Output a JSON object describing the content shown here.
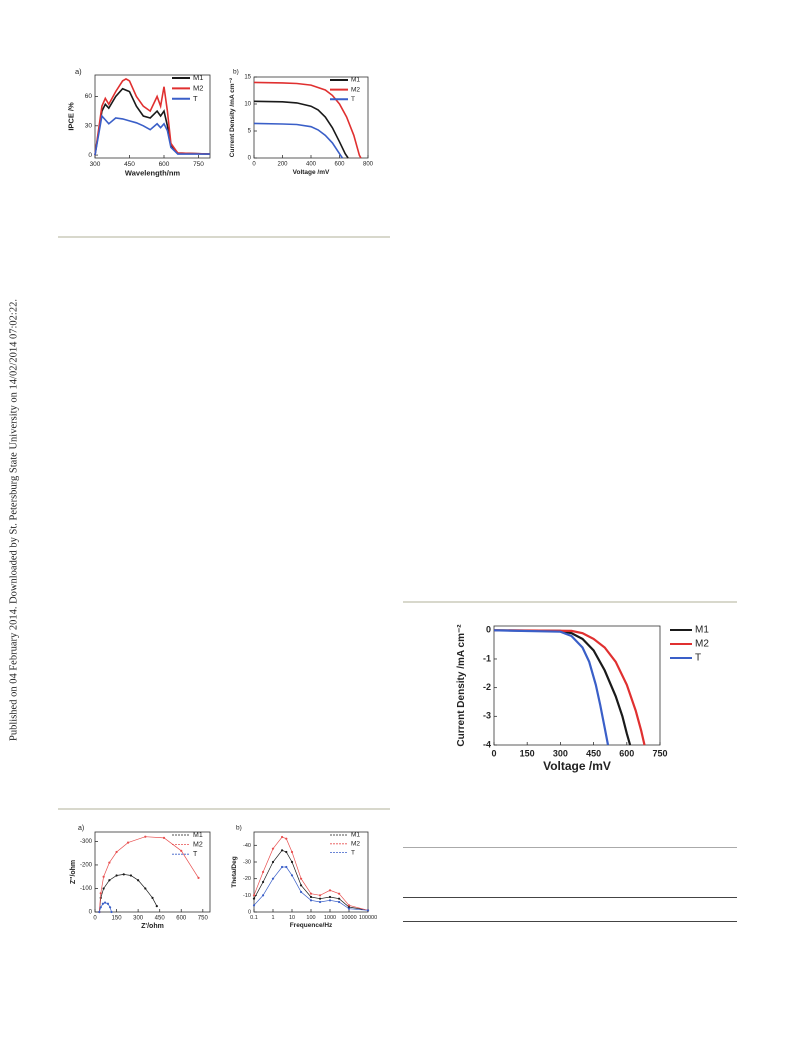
{
  "side_note": "Published on 04 February 2014. Downloaded by St. Petersburg State University on 14/02/2014 07:02:22.",
  "chart_data": [
    {
      "type": "line",
      "panel_label": "a)",
      "y_label": "IPCE /%",
      "x_label": "Wavelength/nm",
      "xlim": [
        300,
        800
      ],
      "ylim": [
        -3,
        82
      ],
      "xticks": [
        300,
        450,
        600,
        750
      ],
      "yticks": [
        0,
        30,
        60
      ],
      "legend": "upper right",
      "markers": false,
      "series": [
        {
          "name": "M1",
          "color": "#1a1a1a",
          "x": [
            300,
            330,
            345,
            360,
            390,
            420,
            450,
            480,
            510,
            540,
            570,
            585,
            600,
            615,
            630,
            660,
            800
          ],
          "values": [
            0,
            45,
            52,
            48,
            60,
            68,
            65,
            50,
            40,
            38,
            45,
            40,
            45,
            30,
            10,
            2,
            1
          ]
        },
        {
          "name": "M2",
          "color": "#e03030",
          "x": [
            300,
            330,
            345,
            360,
            390,
            420,
            435,
            450,
            480,
            510,
            540,
            570,
            585,
            600,
            615,
            630,
            660,
            800
          ],
          "values": [
            0,
            50,
            58,
            52,
            65,
            76,
            78,
            76,
            60,
            50,
            45,
            60,
            50,
            70,
            45,
            12,
            2,
            1
          ]
        },
        {
          "name": "T",
          "color": "#3a5fc8",
          "x": [
            300,
            330,
            360,
            390,
            420,
            450,
            480,
            510,
            540,
            570,
            585,
            600,
            615,
            630,
            660,
            800
          ],
          "values": [
            0,
            40,
            32,
            38,
            37,
            35,
            33,
            30,
            26,
            32,
            28,
            32,
            25,
            8,
            1,
            1
          ]
        }
      ]
    },
    {
      "type": "line",
      "panel_label": "b)",
      "y_label": "Current Density /mA cm⁻²",
      "x_label": "Voltage /mV",
      "xlim": [
        0,
        800
      ],
      "ylim": [
        0,
        15
      ],
      "xticks": [
        0,
        200,
        400,
        600,
        800
      ],
      "yticks": [
        0,
        5,
        10,
        15
      ],
      "legend": "upper right",
      "markers": false,
      "series": [
        {
          "name": "M1",
          "color": "#1a1a1a",
          "x": [
            0,
            200,
            300,
            400,
            450,
            500,
            550,
            600,
            640,
            660
          ],
          "values": [
            10.5,
            10.4,
            10.2,
            9.6,
            8.9,
            7.6,
            5.6,
            3.0,
            0.8,
            0
          ]
        },
        {
          "name": "M2",
          "color": "#e03030",
          "x": [
            0,
            200,
            300,
            400,
            500,
            550,
            600,
            650,
            700,
            740,
            750
          ],
          "values": [
            14,
            13.9,
            13.8,
            13.5,
            12.6,
            11.6,
            10.0,
            7.6,
            4.2,
            0.5,
            0
          ]
        },
        {
          "name": "T",
          "color": "#3a5fc8",
          "x": [
            0,
            200,
            300,
            400,
            450,
            500,
            550,
            600,
            620
          ],
          "values": [
            6.4,
            6.3,
            6.2,
            5.8,
            5.2,
            4.2,
            2.8,
            0.8,
            0
          ]
        }
      ]
    },
    {
      "type": "line",
      "y_label": "Current Density /mA cm⁻²",
      "x_label": "Voltage /mV",
      "xlim": [
        0,
        750
      ],
      "ylim": [
        -4,
        0.15
      ],
      "xticks": [
        0,
        150,
        300,
        450,
        600,
        750
      ],
      "yticks": [
        0,
        -1,
        -2,
        -3,
        -4
      ],
      "legend": "right",
      "markers": false,
      "series": [
        {
          "name": "M1",
          "color": "#1a1a1a",
          "x": [
            0,
            300,
            350,
            400,
            450,
            500,
            550,
            580,
            600,
            615
          ],
          "values": [
            0,
            -0.02,
            -0.1,
            -0.3,
            -0.7,
            -1.4,
            -2.3,
            -3.0,
            -3.6,
            -4
          ]
        },
        {
          "name": "M2",
          "color": "#e03030",
          "x": [
            0,
            350,
            400,
            450,
            500,
            550,
            600,
            640,
            665,
            680
          ],
          "values": [
            0,
            -0.02,
            -0.1,
            -0.3,
            -0.6,
            -1.1,
            -1.9,
            -2.8,
            -3.5,
            -4
          ]
        },
        {
          "name": "T",
          "color": "#3a5fc8",
          "x": [
            0,
            300,
            350,
            400,
            430,
            460,
            480,
            500,
            515
          ],
          "values": [
            0,
            -0.05,
            -0.2,
            -0.6,
            -1.1,
            -1.9,
            -2.6,
            -3.4,
            -4
          ]
        }
      ]
    },
    {
      "type": "line",
      "panel_label": "a)",
      "y_label": "Z''/ohm",
      "x_label": "Z'/ohm",
      "xlim": [
        0,
        800
      ],
      "ylim": [
        0,
        -340
      ],
      "xticks": [
        0,
        150,
        300,
        450,
        600,
        750
      ],
      "yticks": [
        0,
        -100,
        -200,
        -300
      ],
      "legend": "upper right",
      "markers": true,
      "series": [
        {
          "name": "M1",
          "color": "#1a1a1a",
          "x": [
            30,
            40,
            60,
            100,
            150,
            200,
            250,
            300,
            350,
            400,
            430
          ],
          "values": [
            0,
            -60,
            -100,
            -135,
            -155,
            -160,
            -155,
            -135,
            -100,
            -60,
            -25
          ]
        },
        {
          "name": "M2",
          "color": "#e85050",
          "x": [
            30,
            40,
            60,
            100,
            150,
            230,
            350,
            480,
            600,
            720
          ],
          "values": [
            0,
            -80,
            -150,
            -210,
            -255,
            -295,
            -320,
            -315,
            -260,
            -145
          ]
        },
        {
          "name": "T",
          "color": "#3a5fc8",
          "x": [
            30,
            40,
            55,
            70,
            90,
            105,
            115
          ],
          "values": [
            0,
            -20,
            -35,
            -40,
            -35,
            -20,
            0
          ]
        }
      ]
    },
    {
      "type": "line",
      "panel_label": "b)",
      "y_label": "Theta/Deg",
      "x_label": "Frequence/Hz",
      "xscale": "log",
      "xlim": [
        0.1,
        100000
      ],
      "ylim": [
        0,
        -48
      ],
      "xticks": [
        0.1,
        1,
        10,
        100,
        1000,
        10000,
        100000
      ],
      "yticks": [
        0,
        -10,
        -20,
        -30,
        -40
      ],
      "legend": "upper right",
      "markers": true,
      "series": [
        {
          "name": "M1",
          "color": "#1a1a1a",
          "x": [
            0.1,
            0.3,
            1,
            3,
            5,
            10,
            30,
            100,
            300,
            1000,
            3000,
            10000,
            100000
          ],
          "values": [
            -8,
            -18,
            -30,
            -37,
            -36,
            -30,
            -16,
            -9,
            -8,
            -9,
            -8,
            -3,
            -1
          ]
        },
        {
          "name": "M2",
          "color": "#e85050",
          "x": [
            0.1,
            0.3,
            1,
            3,
            5,
            10,
            30,
            100,
            300,
            1000,
            3000,
            10000,
            100000
          ],
          "values": [
            -10,
            -24,
            -38,
            -45,
            -44,
            -36,
            -20,
            -11,
            -10,
            -13,
            -11,
            -4,
            -1
          ]
        },
        {
          "name": "T",
          "color": "#3a5fc8",
          "x": [
            0.1,
            0.3,
            1,
            3,
            5,
            10,
            30,
            100,
            300,
            1000,
            3000,
            10000,
            100000
          ],
          "values": [
            -4,
            -10,
            -20,
            -27,
            -27,
            -22,
            -12,
            -7,
            -6,
            -7,
            -6,
            -2,
            -1
          ]
        }
      ]
    }
  ]
}
